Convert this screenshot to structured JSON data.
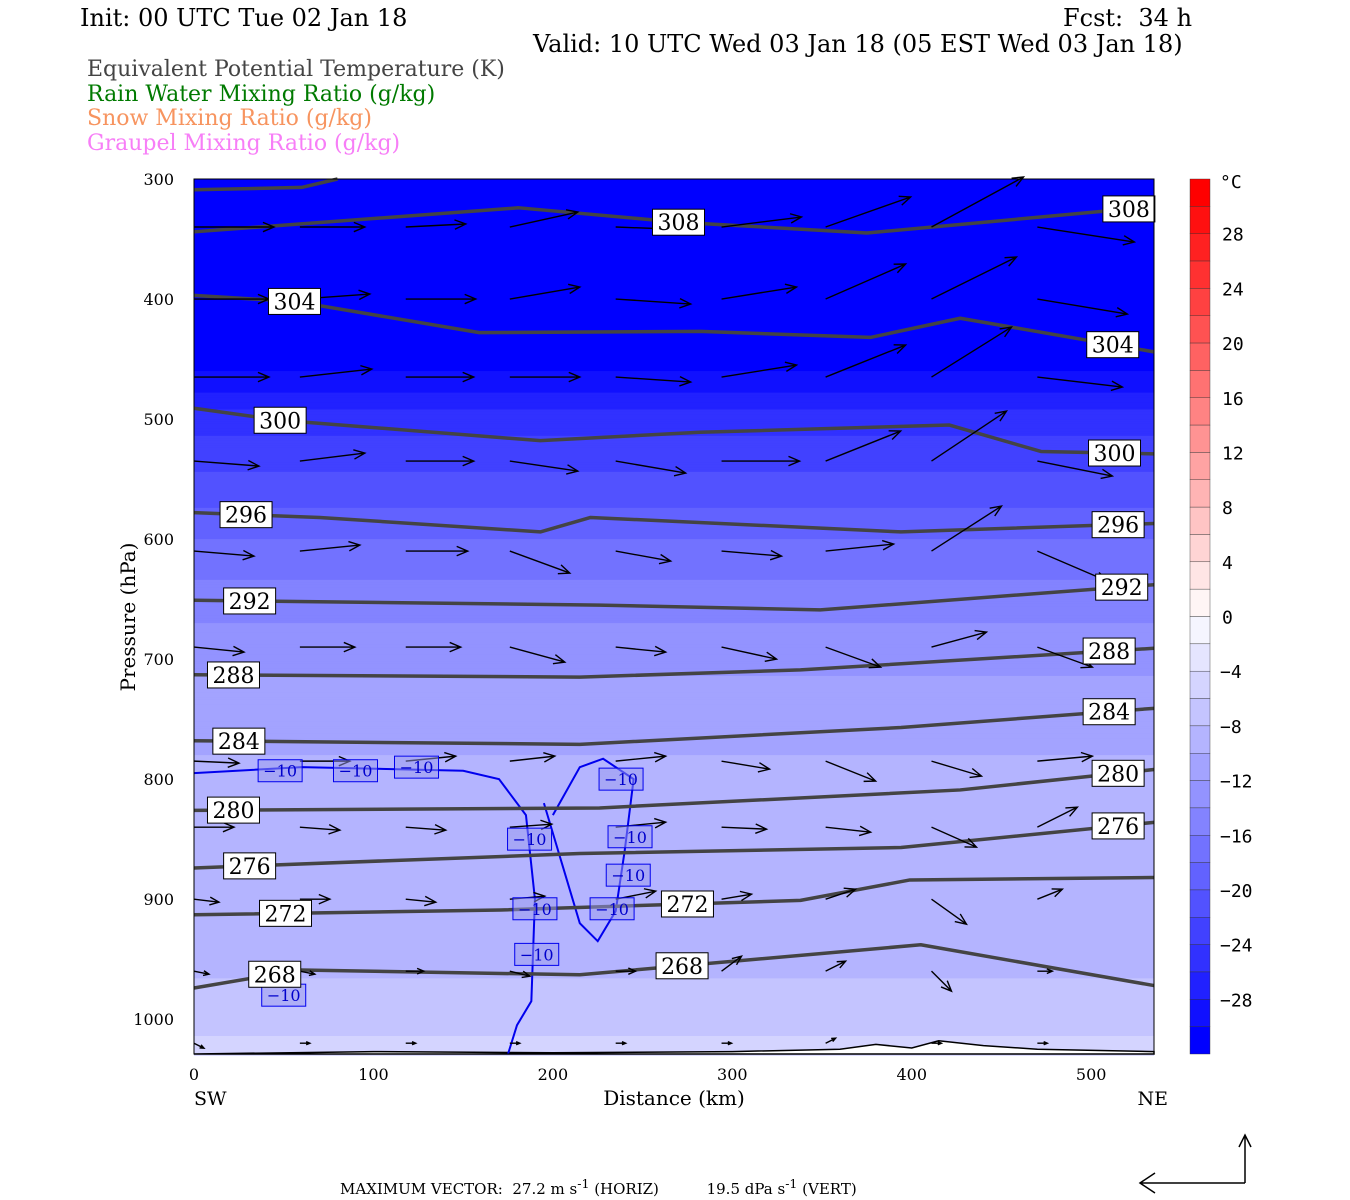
{
  "header": {
    "init": "Init: 00 UTC Tue 02 Jan 18",
    "fcst": "Fcst:  34 h",
    "valid": "Valid: 10 UTC Wed 03 Jan 18 (05 EST Wed 03 Jan 18)"
  },
  "legend": [
    {
      "label": "Equivalent Potential Temperature (K)",
      "color": "#444444"
    },
    {
      "label": "Rain Water Mixing Ratio (g/kg)",
      "color": "#007a00"
    },
    {
      "label": "Snow Mixing Ratio (g/kg)",
      "color": "#f7945f"
    },
    {
      "label": "Graupel Mixing Ratio (g/kg)",
      "color": "#f77ef7"
    }
  ],
  "footer": {
    "prefix": "MAXIMUM VECTOR:  27.2 m s",
    "horiz": " (HORIZ)          19.5 dPa s",
    "vert": " (VERT)",
    "sup": "-1"
  },
  "chart_data": {
    "type": "cross-section",
    "xlabel": "Distance (km)",
    "ylabel": "Pressure (hPa)",
    "xlim": [
      0,
      535
    ],
    "ylim": [
      300,
      1029
    ],
    "xticks": [
      0,
      100,
      200,
      300,
      400,
      500
    ],
    "yticks": [
      300,
      400,
      500,
      600,
      700,
      800,
      900,
      1000
    ],
    "end_labels": {
      "left": "SW",
      "right": "NE"
    },
    "colorbar": {
      "unit": "°C",
      "min": -32,
      "max": 32,
      "step": 2,
      "tick_labels": [
        28,
        24,
        20,
        16,
        12,
        8,
        4,
        0,
        -4,
        -8,
        -12,
        -16,
        -20,
        -24,
        -28
      ]
    },
    "temperature_profile": [
      [
        300,
        -45
      ],
      [
        470,
        -29
      ],
      [
        500,
        -25
      ],
      [
        560,
        -21
      ],
      [
        600,
        -18
      ],
      [
        650,
        -15
      ],
      [
        700,
        -12.5
      ],
      [
        760,
        -10.5
      ],
      [
        800,
        -9.5
      ],
      [
        850,
        -9.5
      ],
      [
        900,
        -9
      ],
      [
        950,
        -8.5
      ],
      [
        1000,
        -7
      ],
      [
        1029,
        -5
      ]
    ],
    "theta_e_contours": [
      {
        "level": 312,
        "points": [
          [
            0,
            309
          ],
          [
            60,
            307
          ],
          [
            80,
            300
          ]
        ],
        "labels": []
      },
      {
        "level": 308,
        "points": [
          [
            0,
            344
          ],
          [
            181,
            324
          ],
          [
            270,
            336
          ],
          [
            375,
            345
          ],
          [
            535,
            323
          ]
        ],
        "labels": [
          270,
          521
        ]
      },
      {
        "level": 304,
        "points": [
          [
            0,
            397
          ],
          [
            56,
            402
          ],
          [
            159,
            428
          ],
          [
            282,
            427
          ],
          [
            377,
            432
          ],
          [
            427,
            416
          ],
          [
            535,
            444
          ]
        ],
        "labels": [
          56,
          512
        ]
      },
      {
        "level": 300,
        "points": [
          [
            0,
            491
          ],
          [
            48,
            501
          ],
          [
            193,
            518
          ],
          [
            282,
            511
          ],
          [
            421,
            505
          ],
          [
            472,
            527
          ],
          [
            535,
            529
          ]
        ],
        "labels": [
          48,
          513
        ]
      },
      {
        "level": 296,
        "points": [
          [
            0,
            578
          ],
          [
            70,
            582
          ],
          [
            193,
            594
          ],
          [
            221,
            582
          ],
          [
            394,
            594
          ],
          [
            535,
            587
          ]
        ],
        "labels": [
          29,
          515
        ]
      },
      {
        "level": 292,
        "points": [
          [
            0,
            651
          ],
          [
            226,
            655
          ],
          [
            349,
            659
          ],
          [
            535,
            638
          ]
        ],
        "labels": [
          31,
          517
        ]
      },
      {
        "level": 288,
        "points": [
          [
            0,
            713
          ],
          [
            215,
            715
          ],
          [
            338,
            709
          ],
          [
            535,
            691
          ]
        ],
        "labels": [
          22,
          510
        ]
      },
      {
        "level": 284,
        "points": [
          [
            0,
            768
          ],
          [
            215,
            771
          ],
          [
            394,
            757
          ],
          [
            535,
            741
          ]
        ],
        "labels": [
          25,
          510
        ]
      },
      {
        "level": 280,
        "points": [
          [
            0,
            826
          ],
          [
            226,
            824
          ],
          [
            427,
            809
          ],
          [
            535,
            792
          ]
        ],
        "labels": [
          22,
          515
        ]
      },
      {
        "level": 276,
        "points": [
          [
            0,
            874
          ],
          [
            215,
            862
          ],
          [
            394,
            857
          ],
          [
            535,
            836
          ]
        ],
        "labels": [
          31,
          515
        ]
      },
      {
        "level": 272,
        "points": [
          [
            0,
            913
          ],
          [
            171,
            909
          ],
          [
            338,
            901
          ],
          [
            399,
            884
          ],
          [
            535,
            882
          ]
        ],
        "labels": [
          51,
          275
        ]
      },
      {
        "level": 268,
        "points": [
          [
            0,
            974
          ],
          [
            59,
            959
          ],
          [
            215,
            963
          ],
          [
            405,
            938
          ],
          [
            535,
            972
          ]
        ],
        "labels": [
          45,
          272
        ]
      }
    ],
    "temp_contour_minus10": {
      "level": -10,
      "points": [
        [
          0,
          795
        ],
        [
          60,
          790
        ],
        [
          150,
          793
        ],
        [
          170,
          800
        ],
        [
          185,
          830
        ],
        [
          190,
          900
        ],
        [
          188,
          985
        ],
        [
          180,
          1005
        ],
        [
          175,
          1029
        ]
      ],
      "points2": [
        [
          200,
          830
        ],
        [
          215,
          790
        ],
        [
          228,
          783
        ],
        [
          245,
          800
        ],
        [
          240,
          860
        ],
        [
          235,
          910
        ],
        [
          225,
          935
        ],
        [
          215,
          920
        ],
        [
          205,
          870
        ],
        [
          195,
          820
        ]
      ],
      "labels": [
        [
          48,
          793
        ],
        [
          90,
          793
        ],
        [
          124,
          790
        ],
        [
          238,
          800
        ],
        [
          187,
          850
        ],
        [
          243,
          848
        ],
        [
          242,
          880
        ],
        [
          233,
          908
        ],
        [
          190,
          908
        ],
        [
          191,
          946
        ],
        [
          50,
          980
        ]
      ]
    },
    "wind_vectors": {
      "columns_km": [
        0,
        59,
        118,
        176,
        235,
        294,
        352,
        411,
        470
      ],
      "rows": [
        {
          "p": 340,
          "v": [
            [
              80,
              0
            ],
            [
              65,
              0
            ],
            [
              60,
              -3
            ],
            [
              68,
              -15
            ],
            [
              80,
              3
            ],
            [
              80,
              -10
            ],
            [
              85,
              -30
            ],
            [
              92,
              -50
            ],
            [
              97,
              15
            ]
          ]
        },
        {
          "p": 400,
          "v": [
            [
              75,
              0
            ],
            [
              70,
              -5
            ],
            [
              70,
              0
            ],
            [
              70,
              -12
            ],
            [
              75,
              5
            ],
            [
              75,
              -12
            ],
            [
              80,
              -35
            ],
            [
              85,
              -42
            ],
            [
              90,
              15
            ]
          ]
        },
        {
          "p": 465,
          "v": [
            [
              75,
              0
            ],
            [
              72,
              -8
            ],
            [
              68,
              0
            ],
            [
              70,
              0
            ],
            [
              75,
              5
            ],
            [
              75,
              -12
            ],
            [
              80,
              -32
            ],
            [
              80,
              -50
            ],
            [
              85,
              10
            ]
          ]
        },
        {
          "p": 535,
          "v": [
            [
              65,
              5
            ],
            [
              65,
              -8
            ],
            [
              68,
              0
            ],
            [
              68,
              10
            ],
            [
              70,
              12
            ],
            [
              78,
              0
            ],
            [
              75,
              -30
            ],
            [
              75,
              -50
            ],
            [
              75,
              15
            ]
          ]
        },
        {
          "p": 610,
          "v": [
            [
              60,
              5
            ],
            [
              60,
              -6
            ],
            [
              62,
              0
            ],
            [
              60,
              22
            ],
            [
              55,
              10
            ],
            [
              60,
              5
            ],
            [
              68,
              -7
            ],
            [
              70,
              -45
            ],
            [
              70,
              30
            ]
          ]
        },
        {
          "p": 690,
          "v": [
            [
              50,
              5
            ],
            [
              55,
              0
            ],
            [
              55,
              0
            ],
            [
              55,
              15
            ],
            [
              50,
              5
            ],
            [
              55,
              12
            ],
            [
              55,
              20
            ],
            [
              55,
              -15
            ],
            [
              55,
              20
            ]
          ]
        },
        {
          "p": 785,
          "v": [
            [
              45,
              2
            ],
            [
              50,
              0
            ],
            [
              50,
              -5
            ],
            [
              45,
              -5
            ],
            [
              50,
              -5
            ],
            [
              48,
              8
            ],
            [
              50,
              20
            ],
            [
              50,
              15
            ],
            [
              55,
              -5
            ]
          ]
        },
        {
          "p": 840,
          "v": [
            [
              40,
              0
            ],
            [
              40,
              3
            ],
            [
              40,
              3
            ],
            [
              42,
              -3
            ],
            [
              50,
              -5
            ],
            [
              45,
              2
            ],
            [
              45,
              5
            ],
            [
              45,
              20
            ],
            [
              40,
              -20
            ]
          ]
        },
        {
          "p": 900,
          "v": [
            [
              25,
              3
            ],
            [
              30,
              0
            ],
            [
              30,
              3
            ],
            [
              35,
              -3
            ],
            [
              40,
              -8
            ],
            [
              30,
              -5
            ],
            [
              30,
              -10
            ],
            [
              35,
              25
            ],
            [
              25,
              -10
            ]
          ]
        },
        {
          "p": 960,
          "v": [
            [
              15,
              3
            ],
            [
              15,
              3
            ],
            [
              18,
              0
            ],
            [
              20,
              5
            ],
            [
              20,
              0
            ],
            [
              20,
              -15
            ],
            [
              20,
              -10
            ],
            [
              20,
              20
            ],
            [
              15,
              0
            ]
          ]
        },
        {
          "p": 1020,
          "v": [
            [
              10,
              5
            ],
            [
              10,
              0
            ],
            [
              10,
              0
            ],
            [
              10,
              0
            ],
            [
              10,
              0
            ],
            [
              10,
              0
            ],
            [
              10,
              -5
            ],
            [
              10,
              0
            ],
            [
              10,
              0
            ]
          ]
        }
      ]
    },
    "terrain": [
      [
        0,
        1029
      ],
      [
        100,
        1027
      ],
      [
        200,
        1028
      ],
      [
        300,
        1027
      ],
      [
        360,
        1025
      ],
      [
        380,
        1021
      ],
      [
        400,
        1024
      ],
      [
        415,
        1018
      ],
      [
        440,
        1022
      ],
      [
        470,
        1025
      ],
      [
        535,
        1027
      ]
    ]
  }
}
